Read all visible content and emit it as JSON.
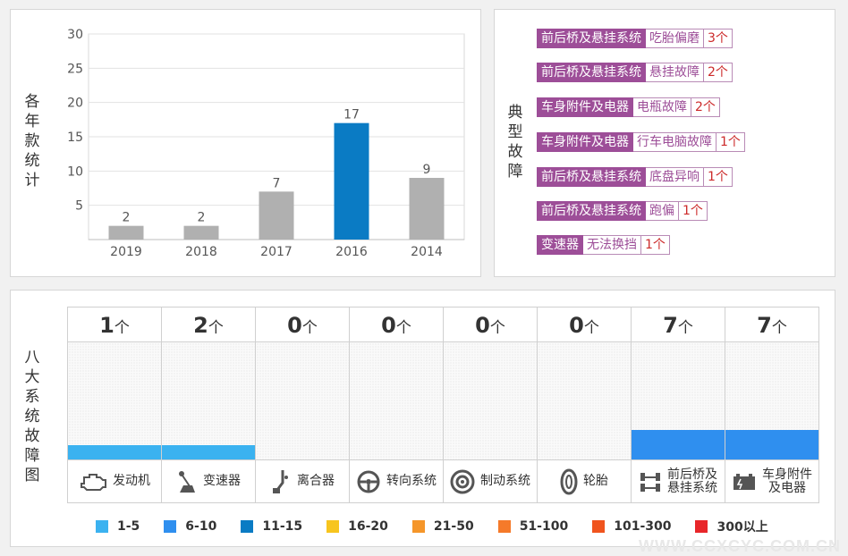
{
  "chart_panel": {
    "vertical_label": "各年款统计"
  },
  "chart_data": {
    "type": "bar",
    "categories": [
      "2019",
      "2018",
      "2017",
      "2016",
      "2014"
    ],
    "values": [
      2,
      2,
      7,
      17,
      9
    ],
    "yticks": [
      5,
      10,
      15,
      20,
      25,
      30
    ],
    "ylim": [
      0,
      30
    ],
    "highlight_index": 3,
    "colors": {
      "normal": "#b0b0b0",
      "highlight": "#0a7bc4"
    },
    "title": "",
    "xlabel": "",
    "ylabel": ""
  },
  "faults_panel": {
    "vertical_label": "典型故障",
    "items": [
      {
        "system": "前后桥及悬挂系统",
        "fault": "吃胎偏磨",
        "count": "3个"
      },
      {
        "system": "前后桥及悬挂系统",
        "fault": "悬挂故障",
        "count": "2个"
      },
      {
        "system": "车身附件及电器",
        "fault": "电瓶故障",
        "count": "2个"
      },
      {
        "system": "车身附件及电器",
        "fault": "行车电脑故障",
        "count": "1个"
      },
      {
        "system": "前后桥及悬挂系统",
        "fault": "底盘异响",
        "count": "1个"
      },
      {
        "system": "前后桥及悬挂系统",
        "fault": "跑偏",
        "count": "1个"
      },
      {
        "system": "变速器",
        "fault": "无法换挡",
        "count": "1个"
      }
    ]
  },
  "systems_panel": {
    "vertical_label": "八大系统故障图",
    "unit": "个",
    "columns": [
      {
        "count": "1",
        "label": "发动机",
        "icon": "engine-icon",
        "level": 0.12,
        "color": "#3bb2f0"
      },
      {
        "count": "2",
        "label": "变速器",
        "icon": "gearshift-icon",
        "level": 0.12,
        "color": "#3bb2f0"
      },
      {
        "count": "0",
        "label": "离合器",
        "icon": "clutch-pedal-icon",
        "level": 0,
        "color": "#3bb2f0"
      },
      {
        "count": "0",
        "label": "转向系统",
        "icon": "steering-wheel-icon",
        "level": 0,
        "color": "#3bb2f0"
      },
      {
        "count": "0",
        "label": "制动系统",
        "icon": "brake-disc-icon",
        "level": 0,
        "color": "#3bb2f0"
      },
      {
        "count": "0",
        "label": "轮胎",
        "icon": "tire-icon",
        "level": 0,
        "color": "#3bb2f0"
      },
      {
        "count": "7",
        "label": "前后桥及悬挂系统",
        "label_lines": [
          "前后桥及",
          "悬挂系统"
        ],
        "icon": "suspension-icon",
        "level": 0.25,
        "color": "#2f8fef"
      },
      {
        "count": "7",
        "label": "车身附件及电器",
        "label_lines": [
          "车身附件",
          "及电器"
        ],
        "icon": "battery-icon",
        "level": 0.25,
        "color": "#2f8fef"
      }
    ],
    "legend": [
      {
        "label": "1-5",
        "color": "#3bb2f0"
      },
      {
        "label": "6-10",
        "color": "#2f8fef"
      },
      {
        "label": "11-15",
        "color": "#0a7bc4"
      },
      {
        "label": "16-20",
        "color": "#f7c51e"
      },
      {
        "label": "21-50",
        "color": "#f5962a"
      },
      {
        "label": "51-100",
        "color": "#f57a2a"
      },
      {
        "label": "101-300",
        "color": "#f0541e"
      },
      {
        "label": "300以上",
        "color": "#e8262a"
      }
    ]
  },
  "watermark": "WWW.CCXCYC.COM.CN"
}
